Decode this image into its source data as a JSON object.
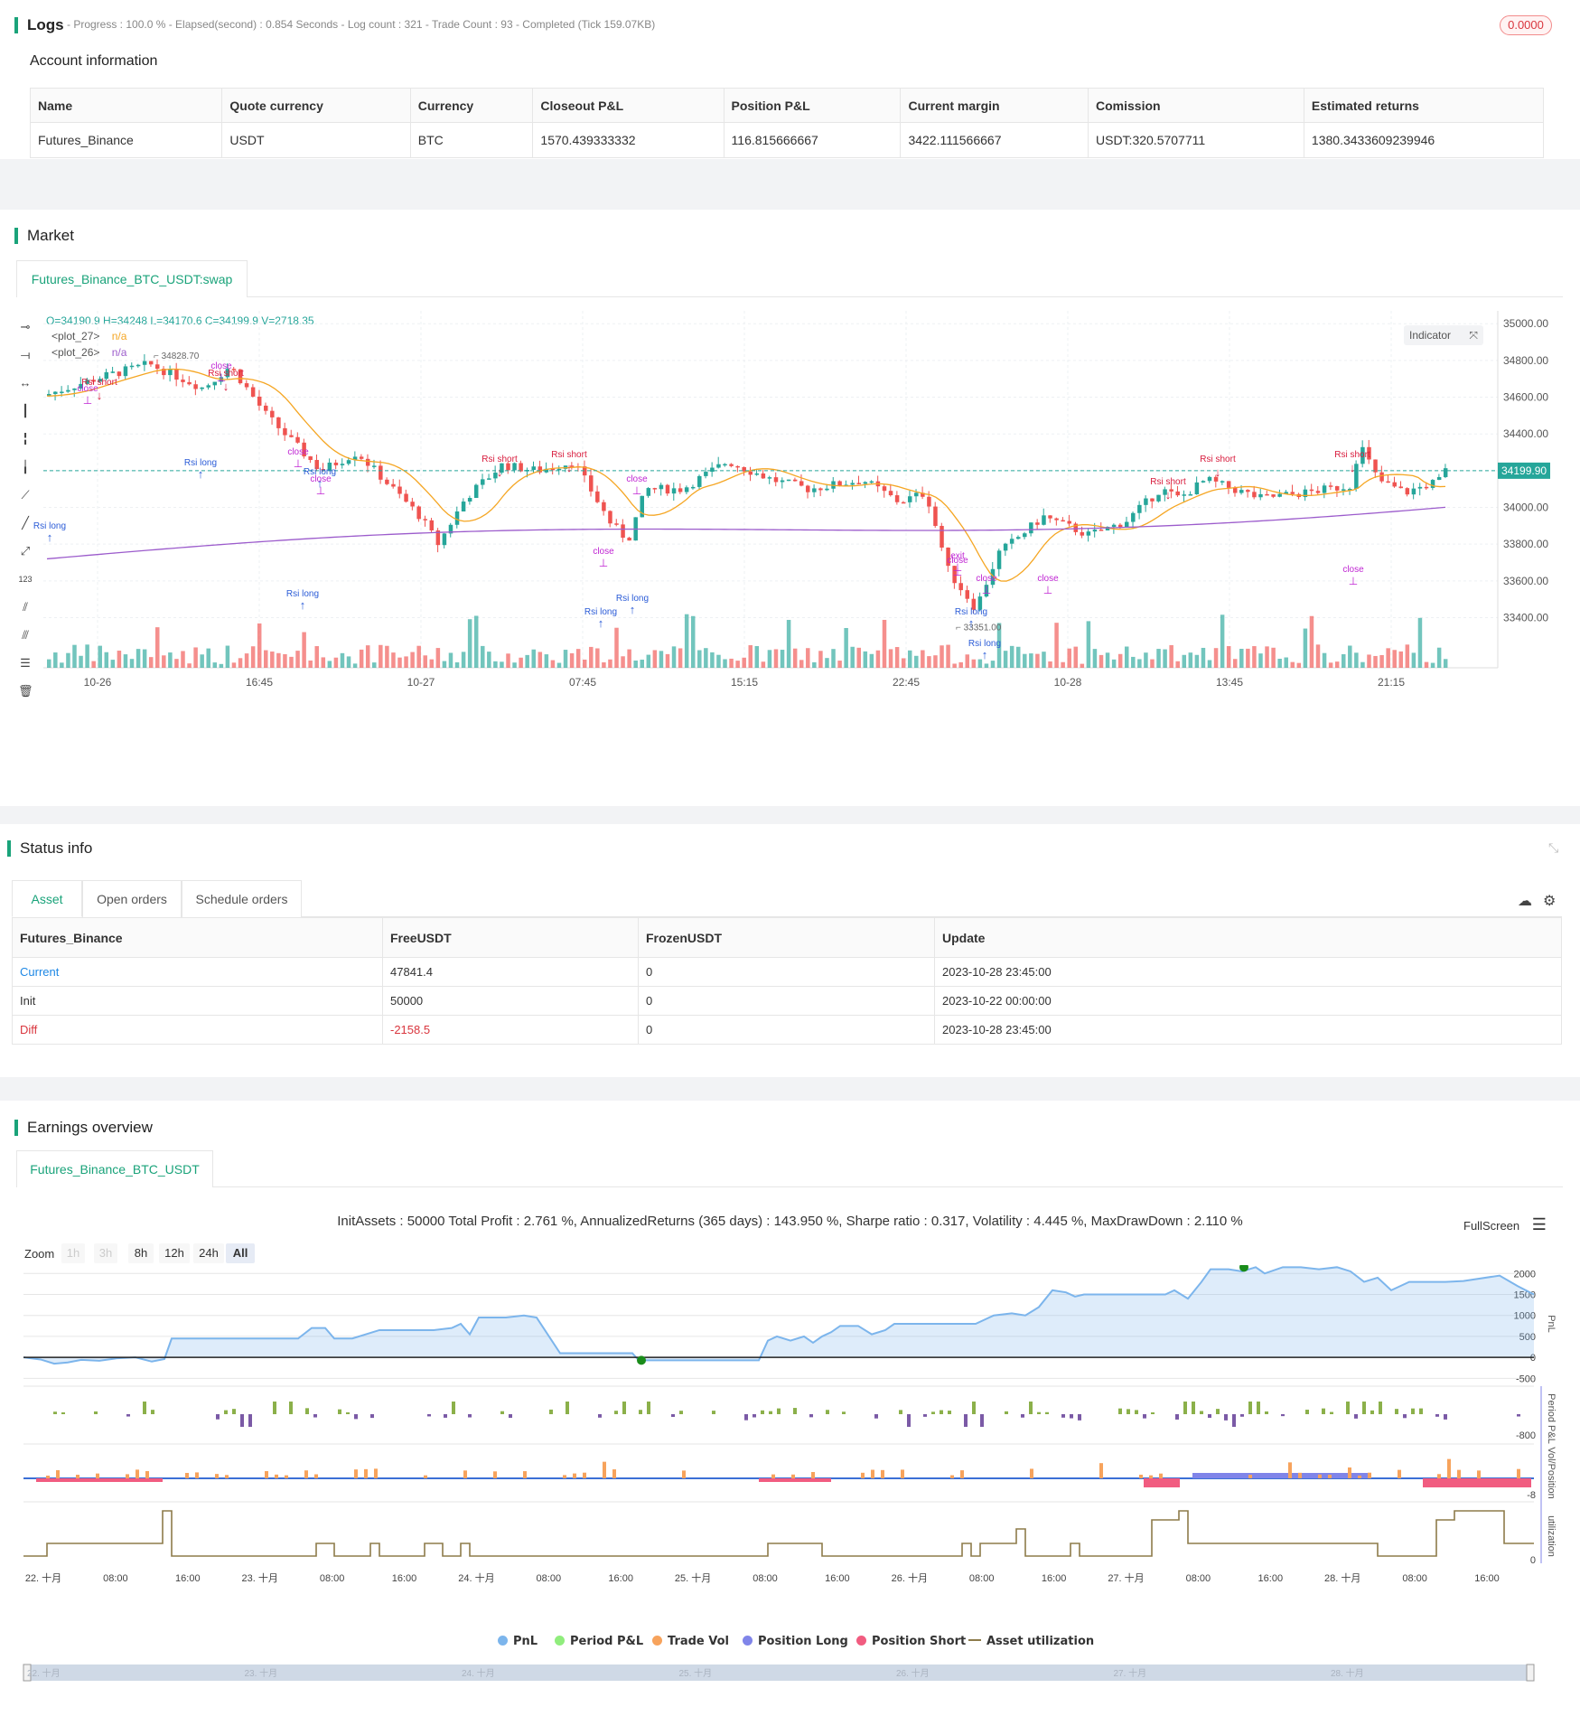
{
  "logs": {
    "title": "Logs",
    "summary": "- Progress : 100.0 % - Elapsed(second) : 0.854  Seconds - Log count : 321 - Trade Count : 93 - Completed (Tick 159.07KB)",
    "badge": "0.0000"
  },
  "account": {
    "heading": "Account information",
    "columns": [
      "Name",
      "Quote currency",
      "Currency",
      "Closeout P&L",
      "Position P&L",
      "Current margin",
      "Comission",
      "Estimated returns"
    ],
    "row": [
      "Futures_Binance",
      "USDT",
      "BTC",
      "1570.439333332",
      "116.815666667",
      "3422.111566667",
      "USDT:320.5707711",
      "1380.3433609239946"
    ]
  },
  "market": {
    "title": "Market",
    "tab": "Futures_Binance_BTC_USDT:swap",
    "ohlc": "O=34190.9 H=34248 L=34170.6 C=34199.9 V=2718.35",
    "plot27": "<plot_27>",
    "plot26": "<plot_26>",
    "na": "n/a",
    "indicator_btn": "Indicator",
    "price_tag": "34199.90",
    "high_label": "34828.70",
    "low_label": "33351.00",
    "y_ticks": [
      "35000.00",
      "34800.00",
      "34600.00",
      "34400.00",
      "34200.00",
      "34000.00",
      "33800.00",
      "33600.00",
      "33400.00"
    ],
    "x_ticks": [
      "10-26",
      "16:45",
      "10-27",
      "07:45",
      "15:15",
      "22:45",
      "10-28",
      "13:45",
      "21:15"
    ],
    "colors": {
      "up": "#26a69a",
      "down": "#ef5350",
      "ma_orange": "#f5a623",
      "ma_purple": "#9c5ccc",
      "long": "#2a5bd7",
      "short": "#d81b3c",
      "close": "#c026d3"
    }
  },
  "status": {
    "title": "Status info",
    "tabs": [
      "Asset",
      "Open orders",
      "Schedule orders"
    ],
    "columns": [
      "Futures_Binance",
      "FreeUSDT",
      "FrozenUSDT",
      "Update"
    ],
    "rows": [
      [
        "Current",
        "47841.4",
        "0",
        "2023-10-28 23:45:00"
      ],
      [
        "Init",
        "50000",
        "0",
        "2023-10-22 00:00:00"
      ],
      [
        "Diff",
        "-2158.5",
        "0",
        "2023-10-28 23:45:00"
      ]
    ]
  },
  "earnings": {
    "title": "Earnings overview",
    "tab": "Futures_Binance_BTC_USDT",
    "summary": "InitAssets : 50000 Total Profit : 2.761 %, AnnualizedReturns (365 days) : 143.950 %, Sharpe ratio : 0.317, Volatility : 4.445 %, MaxDrawDown : 2.110 %",
    "fullscreen": "FullScreen",
    "zoom_label": "Zoom",
    "zoom": [
      "1h",
      "3h",
      "8h",
      "12h",
      "24h",
      "All"
    ],
    "pnl_ticks": [
      "2000",
      "1500",
      "1000",
      "500",
      "0",
      "-500"
    ],
    "period_tick": "-800",
    "vol_tick": "-8",
    "util_tick": "0",
    "axis_titles": [
      "PnL",
      "Period P&L",
      "Vol/Position",
      "utilization"
    ],
    "x_ticks": [
      "22. 十月",
      "08:00",
      "16:00",
      "23. 十月",
      "08:00",
      "16:00",
      "24. 十月",
      "08:00",
      "16:00",
      "25. 十月",
      "08:00",
      "16:00",
      "26. 十月",
      "08:00",
      "16:00",
      "27. 十月",
      "08:00",
      "16:00",
      "28. 十月",
      "08:00",
      "16:00"
    ],
    "nav_ticks": [
      "22. 十月",
      "23. 十月",
      "24. 十月",
      "25. 十月",
      "26. 十月",
      "27. 十月",
      "28. 十月"
    ],
    "legend": [
      {
        "label": "PnL",
        "color": "#7cb5ec"
      },
      {
        "label": "Period P&L",
        "color": "#90ed7d"
      },
      {
        "label": "Trade Vol",
        "color": "#f7a35c"
      },
      {
        "label": "Position Long",
        "color": "#8085e9"
      },
      {
        "label": "Position Short",
        "color": "#f15c80"
      },
      {
        "label": "Asset utilization",
        "color": "#8d7b4a"
      }
    ]
  }
}
